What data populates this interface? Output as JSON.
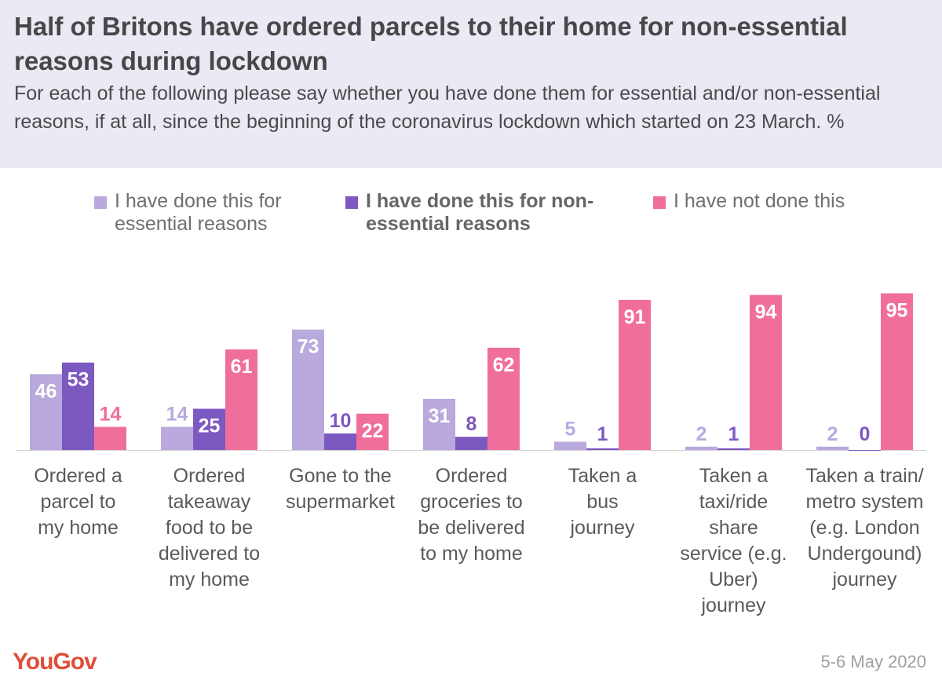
{
  "title": "Half of Britons have ordered parcels to their home for non-essential reasons during lockdown",
  "subtitle": "For each of the following please say whether you have done them for essential and/or non-essential reasons, if at all, since the beginning of the coronavirus lockdown which started on 23 March. %",
  "source": "5-6 May 2020",
  "logo": "YouGov",
  "colors": {
    "essential": "#b9a9dd",
    "nonessential": "#7c58c1",
    "notdone": "#f06e9c",
    "axis": "#d0d0d0"
  },
  "chart_data": {
    "type": "bar",
    "categories": [
      "Ordered a parcel to my home",
      "Ordered takeaway food to be delivered to my home",
      "Gone to the supermarket",
      "Ordered groceries to be delivered to my home",
      "Taken a bus journey",
      "Taken a taxi/ride share service (e.g. Uber) journey",
      "Taken a train/ metro system (e.g. London Undergound) journey"
    ],
    "series": [
      {
        "name": "I have done this for essential reasons",
        "values": [
          46,
          14,
          73,
          31,
          5,
          2,
          2
        ]
      },
      {
        "name": "I have done this for non-essential reasons",
        "values": [
          53,
          25,
          10,
          8,
          1,
          1,
          0
        ]
      },
      {
        "name": "I have not done this",
        "values": [
          14,
          61,
          22,
          62,
          91,
          94,
          95
        ]
      }
    ],
    "ylim": [
      0,
      100
    ],
    "grid": false,
    "legend": "top"
  }
}
